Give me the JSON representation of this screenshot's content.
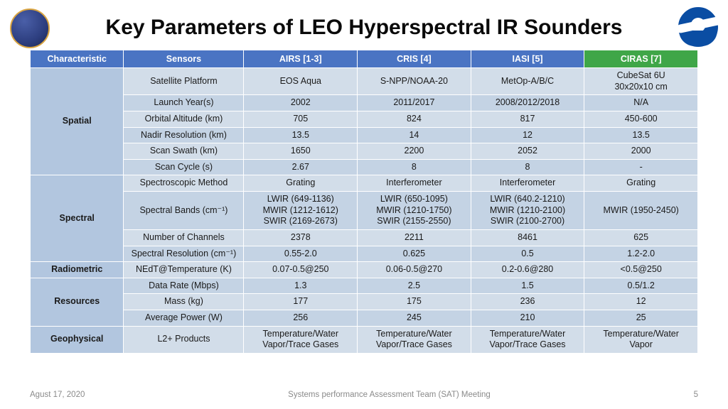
{
  "title": "Key Parameters of LEO Hyperspectral IR Sounders",
  "colors": {
    "header_blue": "#4a74c3",
    "header_green": "#3fa648",
    "cat_bg": "#b2c6df",
    "row_light": "#d2dde9",
    "row_dark": "#b2c6df",
    "row_mid": "#c4d3e4"
  },
  "headers": [
    "Characteristic",
    "Sensors",
    "AIRS [1-3]",
    "CRIS [4]",
    "IASI [5]",
    "CIRAS [7]"
  ],
  "groups": [
    {
      "name": "Spatial",
      "rows": [
        {
          "label": "Satellite Platform",
          "cells": [
            "EOS Aqua",
            "S-NPP/NOAA-20",
            "MetOp-A/B/C",
            "CubeSat 6U\n30x20x10 cm"
          ]
        },
        {
          "label": "Launch Year(s)",
          "cells": [
            "2002",
            "2011/2017",
            "2008/2012/2018",
            "N/A"
          ]
        },
        {
          "label": "Orbital Altitude (km)",
          "cells": [
            "705",
            "824",
            "817",
            "450-600"
          ]
        },
        {
          "label": "Nadir Resolution (km)",
          "cells": [
            "13.5",
            "14",
            "12",
            "13.5"
          ]
        },
        {
          "label": "Scan Swath (km)",
          "cells": [
            "1650",
            "2200",
            "2052",
            "2000"
          ]
        },
        {
          "label": "Scan Cycle (s)",
          "cells": [
            "2.67",
            "8",
            "8",
            "-"
          ]
        }
      ]
    },
    {
      "name": "Spectral",
      "rows": [
        {
          "label": "Spectroscopic Method",
          "cells": [
            "Grating",
            "Interferometer",
            "Interferometer",
            "Grating"
          ]
        },
        {
          "label": "Spectral Bands (cm⁻¹)",
          "cells": [
            "LWIR (649-1136)\nMWIR (1212-1612)\nSWIR (2169-2673)",
            "LWIR (650-1095)\nMWIR (1210-1750)\nSWIR (2155-2550)",
            "LWIR (640.2-1210)\nMWIR (1210-2100)\nSWIR (2100-2700)",
            "MWIR (1950-2450)"
          ]
        },
        {
          "label": "Number of Channels",
          "cells": [
            "2378",
            "2211",
            "8461",
            "625"
          ]
        },
        {
          "label": "Spectral Resolution (cm⁻¹)",
          "cells": [
            "0.55-2.0",
            "0.625",
            "0.5",
            "1.2-2.0"
          ]
        }
      ]
    },
    {
      "name": "Radiometric",
      "rows": [
        {
          "label": "NEdT@Temperature (K)",
          "cells": [
            "0.07-0.5@250",
            "0.06-0.5@270",
            "0.2-0.6@280",
            "<0.5@250"
          ]
        }
      ]
    },
    {
      "name": "Resources",
      "rows": [
        {
          "label": "Data Rate (Mbps)",
          "cells": [
            "1.3",
            "2.5",
            "1.5",
            "0.5/1.2"
          ]
        },
        {
          "label": "Mass (kg)",
          "cells": [
            "177",
            "175",
            "236",
            "12"
          ]
        },
        {
          "label": "Average Power (W)",
          "cells": [
            "256",
            "245",
            "210",
            "25"
          ]
        }
      ]
    },
    {
      "name": "Geophysical",
      "rows": [
        {
          "label": "L2+ Products",
          "cells": [
            "Temperature/Water\nVapor/Trace Gases",
            "Temperature/Water\nVapor/Trace Gases",
            "Temperature/Water\nVapor/Trace Gases",
            "Temperature/Water\nVapor"
          ]
        }
      ]
    }
  ],
  "footer": {
    "date": "Agust 17, 2020",
    "center": "Systems performance Assessment Team (SAT) Meeting",
    "page": "5"
  }
}
